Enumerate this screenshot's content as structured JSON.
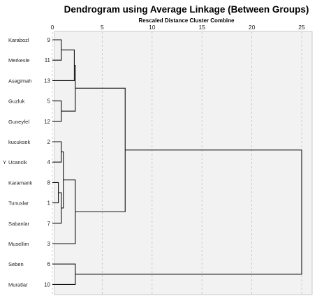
{
  "chart_data": {
    "type": "dendrogram",
    "title": "Dendrogram using Average Linkage (Between Groups)",
    "xlabel": "Rescaled Distance Cluster Combine",
    "ylabel": "Y",
    "xlim": [
      0,
      25
    ],
    "xticks": [
      "0",
      "5",
      "10",
      "15",
      "20",
      "25"
    ],
    "grid": true,
    "leaves": [
      {
        "label": "Karabozl",
        "id": "9"
      },
      {
        "label": "Merkesle",
        "id": "11"
      },
      {
        "label": "Asagimah",
        "id": "13"
      },
      {
        "label": "Guzluk",
        "id": "5"
      },
      {
        "label": "Guneyfel",
        "id": "12"
      },
      {
        "label": "kucuksek",
        "id": "2"
      },
      {
        "label": "Ucancik",
        "id": "4"
      },
      {
        "label": "Karamank",
        "id": "8"
      },
      {
        "label": "Tunuslar",
        "id": "1"
      },
      {
        "label": "Sabanlar",
        "id": "7"
      },
      {
        "label": "Musellim",
        "id": "3"
      },
      {
        "label": "Seben",
        "id": "6"
      },
      {
        "label": "Muratlar",
        "id": "10"
      }
    ],
    "merges": [
      {
        "children": [
          "L0",
          "L1"
        ],
        "distance": 0.9
      },
      {
        "children": [
          "M0",
          "L2"
        ],
        "distance": 2.2
      },
      {
        "children": [
          "L3",
          "L4"
        ],
        "distance": 0.9
      },
      {
        "children": [
          "M1",
          "M2"
        ],
        "distance": 2.3
      },
      {
        "children": [
          "L5",
          "L6"
        ],
        "distance": 0.9
      },
      {
        "children": [
          "L7",
          "L8"
        ],
        "distance": 0.6
      },
      {
        "children": [
          "M5",
          "L9"
        ],
        "distance": 0.9
      },
      {
        "children": [
          "M4",
          "M6"
        ],
        "distance": 1.1
      },
      {
        "children": [
          "M7",
          "L10"
        ],
        "distance": 2.3
      },
      {
        "children": [
          "M3",
          "M8"
        ],
        "distance": 7.3
      },
      {
        "children": [
          "L11",
          "L12"
        ],
        "distance": 2.3
      },
      {
        "children": [
          "M9",
          "M10"
        ],
        "distance": 25
      }
    ]
  }
}
